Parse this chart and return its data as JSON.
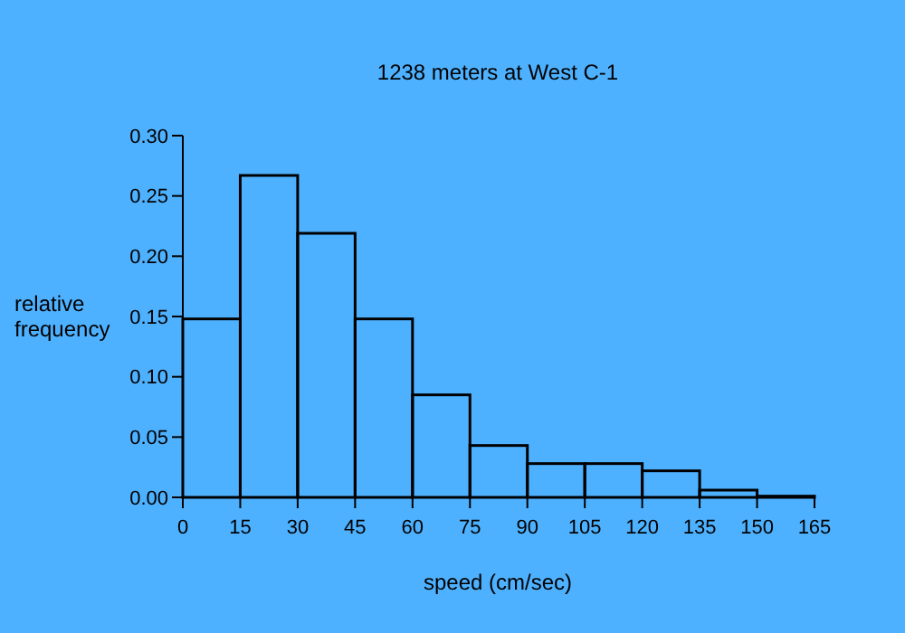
{
  "chart_data": {
    "type": "histogram",
    "title": "1238 meters at West C-1",
    "xlabel": "speed (cm/sec)",
    "ylabel": "relative\nfrequency",
    "bins": [
      0,
      15,
      30,
      45,
      60,
      75,
      90,
      105,
      120,
      135,
      150,
      165
    ],
    "values": [
      0.148,
      0.267,
      0.219,
      0.148,
      0.085,
      0.043,
      0.028,
      0.028,
      0.022,
      0.006,
      0.001
    ],
    "color": "#000000",
    "xlim": [
      0,
      165
    ],
    "ylim": [
      0,
      0.3
    ],
    "xticks": [
      0,
      15,
      30,
      45,
      60,
      75,
      90,
      105,
      120,
      135,
      150,
      165
    ],
    "yticks": [
      {
        "value": 0,
        "label": "0.00"
      },
      {
        "value": 0.05,
        "label": "0.05"
      },
      {
        "value": 0.1,
        "label": "0.10"
      },
      {
        "value": 0.15,
        "label": "0.15"
      },
      {
        "value": 0.2,
        "label": "0.20"
      },
      {
        "value": 0.25,
        "label": "0.25"
      },
      {
        "value": 0.3,
        "label": "0.30"
      }
    ],
    "grid": false
  }
}
